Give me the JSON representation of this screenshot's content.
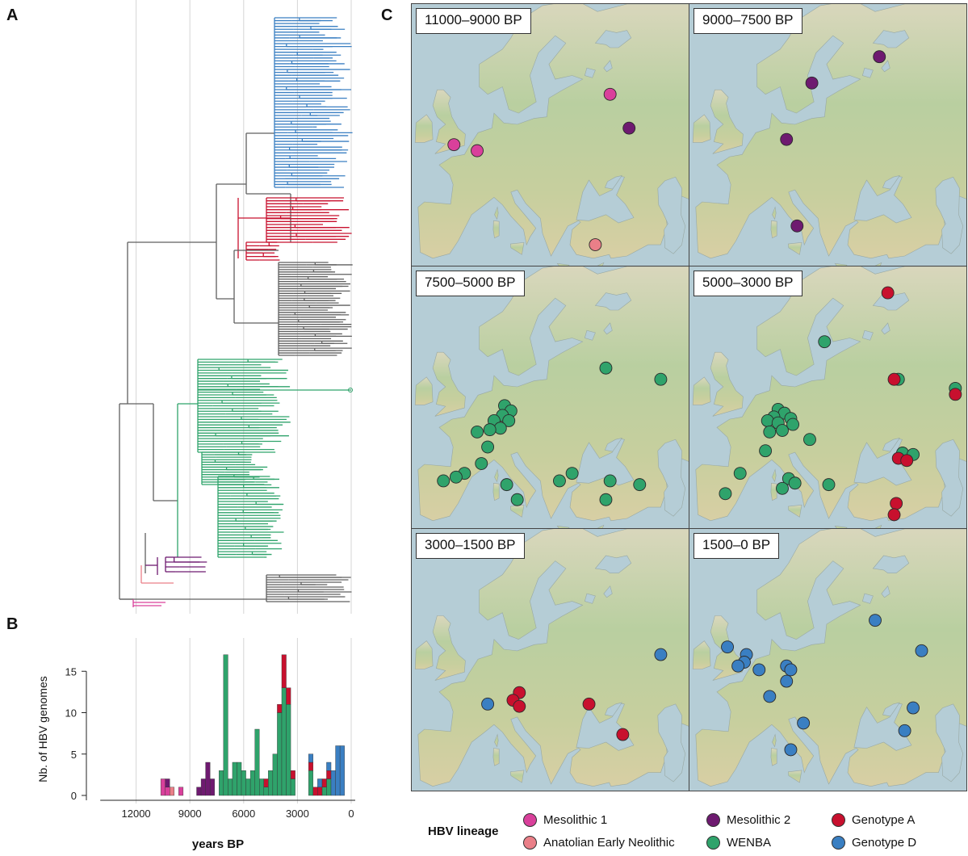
{
  "panel_letters": {
    "a": "A",
    "b": "B",
    "c": "C"
  },
  "colors": {
    "mesolithic1": "#d9409b",
    "mesolithic2": "#6e1a70",
    "anatolian": "#ea7f88",
    "wenba": "#2fa36b",
    "genotypeA": "#c8102e",
    "genotypeD": "#3a7fc2",
    "tree_gray": "#5f5f5f"
  },
  "chart_data": {
    "type": "bar",
    "stacked": true,
    "xlabel": "years BP",
    "ylabel": "Nb. of HBV genomes",
    "x_reversed": true,
    "xlim": [
      14000,
      0
    ],
    "ylim": [
      0,
      17
    ],
    "xticks": [
      "12000",
      "9000",
      "6000",
      "3000",
      "0"
    ],
    "xtick_values": [
      12000,
      9000,
      6000,
      3000,
      0
    ],
    "yticks": [
      "0",
      "5",
      "10",
      "15"
    ],
    "ytick_values": [
      0,
      5,
      10,
      15
    ],
    "bin_width": 250,
    "series": [
      {
        "key": "mesolithic1",
        "name": "Mesolithic 1",
        "bins": [
          [
            10500,
            2
          ],
          [
            10250,
            1
          ],
          [
            9500,
            1
          ]
        ]
      },
      {
        "key": "mesolithic2",
        "name": "Mesolithic 2",
        "bins": [
          [
            10250,
            1
          ],
          [
            8500,
            1
          ],
          [
            8250,
            2
          ],
          [
            8000,
            4
          ],
          [
            7750,
            2
          ]
        ]
      },
      {
        "key": "anatolian",
        "name": "Anatolian Early Neolithic",
        "bins": [
          [
            10000,
            1
          ]
        ]
      },
      {
        "key": "wenba",
        "name": "WENBA",
        "bins": [
          [
            7250,
            3
          ],
          [
            7000,
            17
          ],
          [
            6750,
            2
          ],
          [
            6500,
            4
          ],
          [
            6250,
            4
          ],
          [
            6000,
            3
          ],
          [
            5750,
            2
          ],
          [
            5500,
            3
          ],
          [
            5250,
            8
          ],
          [
            5000,
            2
          ],
          [
            4750,
            1
          ],
          [
            4500,
            3
          ],
          [
            4250,
            5
          ],
          [
            4000,
            10
          ],
          [
            3750,
            13
          ],
          [
            3500,
            11
          ],
          [
            3250,
            2
          ],
          [
            2250,
            3
          ],
          [
            1500,
            1
          ],
          [
            1250,
            2
          ]
        ]
      },
      {
        "key": "genotypeA",
        "name": "Genotype A",
        "bins": [
          [
            4750,
            1
          ],
          [
            4000,
            1
          ],
          [
            3750,
            4
          ],
          [
            3500,
            2
          ],
          [
            3250,
            1
          ],
          [
            2250,
            1
          ],
          [
            2000,
            1
          ],
          [
            1750,
            1
          ],
          [
            1500,
            1
          ],
          [
            1250,
            1
          ]
        ]
      },
      {
        "key": "genotypeD",
        "name": "Genotype D",
        "bins": [
          [
            2250,
            1
          ],
          [
            1750,
            1
          ],
          [
            1250,
            1
          ],
          [
            1000,
            3
          ],
          [
            750,
            6
          ],
          [
            500,
            6
          ]
        ]
      }
    ]
  },
  "maps": [
    {
      "label": "11000–9000 BP",
      "points": [
        {
          "lineage": "mesolithic1",
          "lon": -1.0,
          "lat": 51.3
        },
        {
          "lineage": "mesolithic1",
          "lon": 4.5,
          "lat": 50.5
        },
        {
          "lineage": "mesolithic1",
          "lon": 36.0,
          "lat": 58.0
        },
        {
          "lineage": "mesolithic2",
          "lon": 40.5,
          "lat": 53.5
        },
        {
          "lineage": "anatolian",
          "lon": 32.5,
          "lat": 38.0
        }
      ]
    },
    {
      "label": "9000–7500 BP",
      "points": [
        {
          "lineage": "mesolithic2",
          "lon": 18.0,
          "lat": 59.5
        },
        {
          "lineage": "mesolithic2",
          "lon": 34.0,
          "lat": 63.0
        },
        {
          "lineage": "mesolithic2",
          "lon": 12.0,
          "lat": 52.0
        },
        {
          "lineage": "mesolithic2",
          "lon": 14.5,
          "lat": 40.5
        }
      ]
    },
    {
      "label": "7500–5000 BP",
      "points": [
        {
          "lineage": "wenba",
          "lon": 35.0,
          "lat": 56.5
        },
        {
          "lineage": "wenba",
          "lon": 48.0,
          "lat": 55.0
        },
        {
          "lineage": "wenba",
          "lon": 11.0,
          "lat": 51.5
        },
        {
          "lineage": "wenba",
          "lon": 12.5,
          "lat": 50.8
        },
        {
          "lineage": "wenba",
          "lon": 10.5,
          "lat": 50.2
        },
        {
          "lineage": "wenba",
          "lon": 12.0,
          "lat": 49.5
        },
        {
          "lineage": "wenba",
          "lon": 8.5,
          "lat": 49.5
        },
        {
          "lineage": "wenba",
          "lon": 10.0,
          "lat": 48.5
        },
        {
          "lineage": "wenba",
          "lon": 7.5,
          "lat": 48.3
        },
        {
          "lineage": "wenba",
          "lon": 4.5,
          "lat": 48.0
        },
        {
          "lineage": "wenba",
          "lon": 7.0,
          "lat": 46.0
        },
        {
          "lineage": "wenba",
          "lon": 5.5,
          "lat": 43.8
        },
        {
          "lineage": "wenba",
          "lon": 1.5,
          "lat": 42.5
        },
        {
          "lineage": "wenba",
          "lon": -0.5,
          "lat": 42.0
        },
        {
          "lineage": "wenba",
          "lon": -3.5,
          "lat": 41.5
        },
        {
          "lineage": "wenba",
          "lon": 11.5,
          "lat": 41.0
        },
        {
          "lineage": "wenba",
          "lon": 14.0,
          "lat": 39.0
        },
        {
          "lineage": "wenba",
          "lon": 24.0,
          "lat": 41.5
        },
        {
          "lineage": "wenba",
          "lon": 27.0,
          "lat": 42.5
        },
        {
          "lineage": "wenba",
          "lon": 36.0,
          "lat": 41.5
        },
        {
          "lineage": "wenba",
          "lon": 43.0,
          "lat": 41.0
        },
        {
          "lineage": "wenba",
          "lon": 35.0,
          "lat": 39.0
        }
      ]
    },
    {
      "label": "5000–3000 BP",
      "points": [
        {
          "lineage": "genotypeA",
          "lon": 36.0,
          "lat": 66.5
        },
        {
          "lineage": "wenba",
          "lon": 21.0,
          "lat": 60.0
        },
        {
          "lineage": "wenba",
          "lon": 38.5,
          "lat": 55.0
        },
        {
          "lineage": "genotypeA",
          "lon": 37.5,
          "lat": 55.0
        },
        {
          "lineage": "wenba",
          "lon": 52.0,
          "lat": 53.8
        },
        {
          "lineage": "genotypeA",
          "lon": 52.0,
          "lat": 53.0
        },
        {
          "lineage": "wenba",
          "lon": 10.0,
          "lat": 51.0
        },
        {
          "lineage": "wenba",
          "lon": 11.5,
          "lat": 50.5
        },
        {
          "lineage": "wenba",
          "lon": 9.0,
          "lat": 50.0
        },
        {
          "lineage": "wenba",
          "lon": 13.0,
          "lat": 49.8
        },
        {
          "lineage": "wenba",
          "lon": 7.5,
          "lat": 49.5
        },
        {
          "lineage": "wenba",
          "lon": 10.0,
          "lat": 49.2
        },
        {
          "lineage": "wenba",
          "lon": 13.5,
          "lat": 49.0
        },
        {
          "lineage": "wenba",
          "lon": 11.0,
          "lat": 48.2
        },
        {
          "lineage": "wenba",
          "lon": 8.0,
          "lat": 48.0
        },
        {
          "lineage": "wenba",
          "lon": 17.5,
          "lat": 47.0
        },
        {
          "lineage": "wenba",
          "lon": 7.0,
          "lat": 45.5
        },
        {
          "lineage": "wenba",
          "lon": 12.5,
          "lat": 41.8
        },
        {
          "lineage": "wenba",
          "lon": 14.0,
          "lat": 41.2
        },
        {
          "lineage": "wenba",
          "lon": 11.0,
          "lat": 40.5
        },
        {
          "lineage": "wenba",
          "lon": 22.0,
          "lat": 41.0
        },
        {
          "lineage": "wenba",
          "lon": 1.0,
          "lat": 42.5
        },
        {
          "lineage": "wenba",
          "lon": -2.5,
          "lat": 39.8
        },
        {
          "lineage": "wenba",
          "lon": 39.5,
          "lat": 45.2
        },
        {
          "lineage": "wenba",
          "lon": 42.0,
          "lat": 45.0
        },
        {
          "lineage": "genotypeA",
          "lon": 38.5,
          "lat": 44.5
        },
        {
          "lineage": "genotypeA",
          "lon": 40.5,
          "lat": 44.2
        },
        {
          "lineage": "genotypeA",
          "lon": 38.0,
          "lat": 38.5
        },
        {
          "lineage": "genotypeA",
          "lon": 37.5,
          "lat": 37.0
        }
      ]
    },
    {
      "label": "3000–1500 BP",
      "points": [
        {
          "lineage": "genotypeD",
          "lon": 48.0,
          "lat": 53.5
        },
        {
          "lineage": "genotypeA",
          "lon": 14.5,
          "lat": 48.5
        },
        {
          "lineage": "genotypeA",
          "lon": 13.0,
          "lat": 47.5
        },
        {
          "lineage": "genotypeA",
          "lon": 14.5,
          "lat": 46.7
        },
        {
          "lineage": "genotypeA",
          "lon": 31.0,
          "lat": 47.0
        },
        {
          "lineage": "genotypeD",
          "lon": 7.0,
          "lat": 47.0
        },
        {
          "lineage": "genotypeA",
          "lon": 39.0,
          "lat": 43.0
        }
      ]
    },
    {
      "label": "1500–0 BP",
      "points": [
        {
          "lineage": "genotypeD",
          "lon": 33.0,
          "lat": 58.0
        },
        {
          "lineage": "genotypeD",
          "lon": -2.0,
          "lat": 54.5
        },
        {
          "lineage": "genotypeD",
          "lon": 2.5,
          "lat": 53.5
        },
        {
          "lineage": "genotypeD",
          "lon": 2.0,
          "lat": 52.5
        },
        {
          "lineage": "genotypeD",
          "lon": 0.5,
          "lat": 52.0
        },
        {
          "lineage": "genotypeD",
          "lon": 5.5,
          "lat": 51.5
        },
        {
          "lineage": "genotypeD",
          "lon": 12.0,
          "lat": 52.0
        },
        {
          "lineage": "genotypeD",
          "lon": 13.0,
          "lat": 51.5
        },
        {
          "lineage": "genotypeD",
          "lon": 12.0,
          "lat": 50.0
        },
        {
          "lineage": "genotypeD",
          "lon": 44.0,
          "lat": 54.0
        },
        {
          "lineage": "genotypeD",
          "lon": 8.0,
          "lat": 48.0
        },
        {
          "lineage": "genotypeD",
          "lon": 42.0,
          "lat": 46.5
        },
        {
          "lineage": "genotypeD",
          "lon": 40.0,
          "lat": 43.5
        },
        {
          "lineage": "genotypeD",
          "lon": 16.0,
          "lat": 44.5
        },
        {
          "lineage": "genotypeD",
          "lon": 13.0,
          "lat": 41.0
        }
      ]
    }
  ],
  "legend": {
    "title": "HBV lineage",
    "items": [
      {
        "key": "mesolithic1",
        "label": "Mesolithic 1"
      },
      {
        "key": "mesolithic2",
        "label": "Mesolithic 2"
      },
      {
        "key": "genotypeA",
        "label": "Genotype A"
      },
      {
        "key": "anatolian",
        "label": "Anatolian Early Neolithic"
      },
      {
        "key": "wenba",
        "label": "WENBA"
      },
      {
        "key": "genotypeD",
        "label": "Genotype D"
      }
    ]
  }
}
